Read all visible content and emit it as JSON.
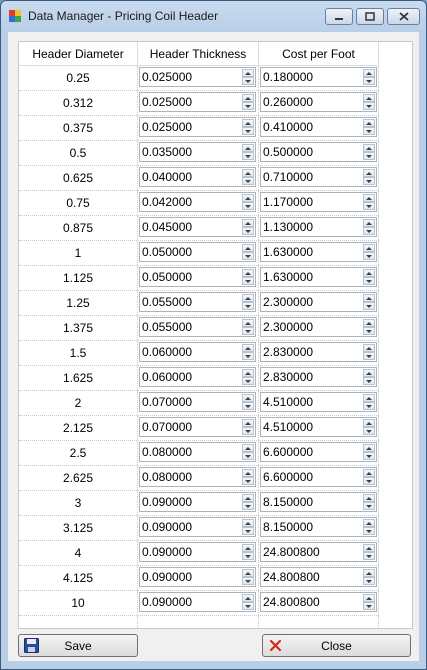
{
  "window": {
    "title": "Data Manager - Pricing Coil Header"
  },
  "grid": {
    "headers": [
      "Header Diameter",
      "Header Thickness",
      "Cost per Foot"
    ],
    "rows": [
      {
        "diameter": "0.25",
        "thickness": "0.025000",
        "cost": "0.180000"
      },
      {
        "diameter": "0.312",
        "thickness": "0.025000",
        "cost": "0.260000"
      },
      {
        "diameter": "0.375",
        "thickness": "0.025000",
        "cost": "0.410000"
      },
      {
        "diameter": "0.5",
        "thickness": "0.035000",
        "cost": "0.500000"
      },
      {
        "diameter": "0.625",
        "thickness": "0.040000",
        "cost": "0.710000"
      },
      {
        "diameter": "0.75",
        "thickness": "0.042000",
        "cost": "1.170000"
      },
      {
        "diameter": "0.875",
        "thickness": "0.045000",
        "cost": "1.130000"
      },
      {
        "diameter": "1",
        "thickness": "0.050000",
        "cost": "1.630000"
      },
      {
        "diameter": "1.125",
        "thickness": "0.050000",
        "cost": "1.630000"
      },
      {
        "diameter": "1.25",
        "thickness": "0.055000",
        "cost": "2.300000"
      },
      {
        "diameter": "1.375",
        "thickness": "0.055000",
        "cost": "2.300000"
      },
      {
        "diameter": "1.5",
        "thickness": "0.060000",
        "cost": "2.830000"
      },
      {
        "diameter": "1.625",
        "thickness": "0.060000",
        "cost": "2.830000"
      },
      {
        "diameter": "2",
        "thickness": "0.070000",
        "cost": "4.510000"
      },
      {
        "diameter": "2.125",
        "thickness": "0.070000",
        "cost": "4.510000"
      },
      {
        "diameter": "2.5",
        "thickness": "0.080000",
        "cost": "6.600000"
      },
      {
        "diameter": "2.625",
        "thickness": "0.080000",
        "cost": "6.600000"
      },
      {
        "diameter": "3",
        "thickness": "0.090000",
        "cost": "8.150000"
      },
      {
        "diameter": "3.125",
        "thickness": "0.090000",
        "cost": "8.150000"
      },
      {
        "diameter": "4",
        "thickness": "0.090000",
        "cost": "24.800800"
      },
      {
        "diameter": "4.125",
        "thickness": "0.090000",
        "cost": "24.800800"
      },
      {
        "diameter": "10",
        "thickness": "0.090000",
        "cost": "24.800800"
      }
    ]
  },
  "buttons": {
    "save": "Save",
    "close": "Close"
  },
  "icons": {
    "app": "app-icon",
    "save": "floppy-disk-icon",
    "close": "red-x-icon"
  },
  "colors": {
    "titlebar": "#b9cfe8",
    "close_x": "#d42a1c"
  }
}
